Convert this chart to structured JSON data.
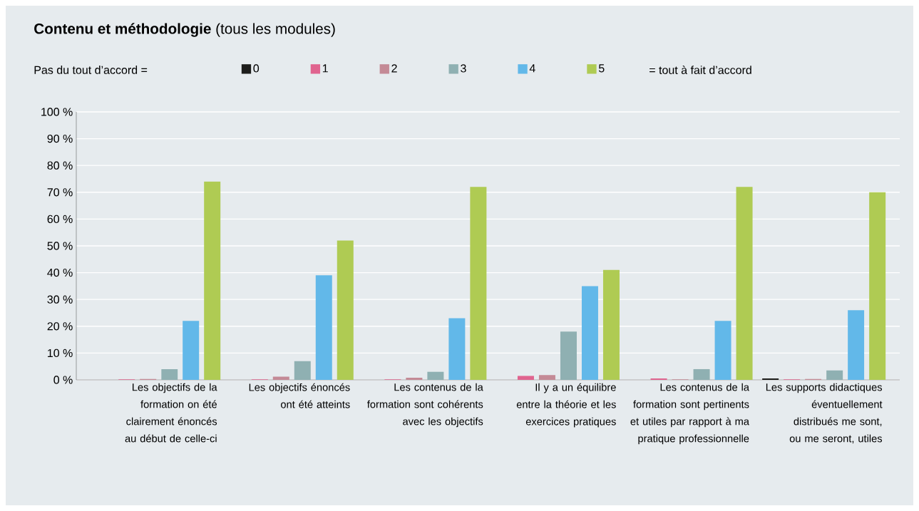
{
  "chart_data": {
    "type": "bar",
    "title": "**Contenu et méthodologie** (tous les modules)",
    "legend_title": "Pas du tout d’accord =",
    "annotations": [
      "= tout à fait d’accord"
    ],
    "categories": [
      "Les objectifs de la formation on été clairement énoncés au début de celle-ci",
      "Les objectifs énoncés ont été atteints",
      "Les contenus de la formation sont cohérents avec les objectifs",
      "Il y a un équilibre entre la théorie et les exercices pratiques",
      "Les contenus de la formation sont pertinents et utiles par rapport à ma pratique professionnelle",
      "Les supports didactiques éventuellement distribués me sont, ou me seront, utiles"
    ],
    "series": [
      {
        "name": "0",
        "color": "#1d1d1b",
        "values": [
          0,
          0,
          0,
          0,
          0,
          0.5
        ]
      },
      {
        "name": "1",
        "color": "#e0648f",
        "values": [
          0.2,
          0.2,
          0.2,
          1.5,
          0.5,
          0.2
        ]
      },
      {
        "name": "2",
        "color": "#c48a96",
        "values": [
          0.3,
          1.2,
          0.8,
          1.8,
          0.2,
          0.3
        ]
      },
      {
        "name": "3",
        "color": "#8fb0b2",
        "values": [
          4,
          7,
          3,
          18,
          4,
          3.5
        ]
      },
      {
        "name": "4",
        "color": "#62b8e9",
        "values": [
          22,
          39,
          23,
          35,
          22,
          26
        ]
      },
      {
        "name": "5",
        "color": "#afcb53",
        "values": [
          74,
          52,
          72,
          41,
          72,
          70
        ]
      }
    ],
    "ylim": [
      0,
      100
    ],
    "yticks": [
      {
        "value": 0,
        "label": "0 %"
      },
      {
        "value": 10,
        "label": "10 %"
      },
      {
        "value": 20,
        "label": "20 %"
      },
      {
        "value": 30,
        "label": "30 %"
      },
      {
        "value": 40,
        "label": "40 %"
      },
      {
        "value": 50,
        "label": "50 %"
      },
      {
        "value": 60,
        "label": "60 %"
      },
      {
        "value": 70,
        "label": "70 %"
      },
      {
        "value": 80,
        "label": "80 %"
      },
      {
        "value": 90,
        "label": "90 %"
      },
      {
        "value": 100,
        "label": "100 %"
      }
    ],
    "grid": "y",
    "legend": "top"
  }
}
